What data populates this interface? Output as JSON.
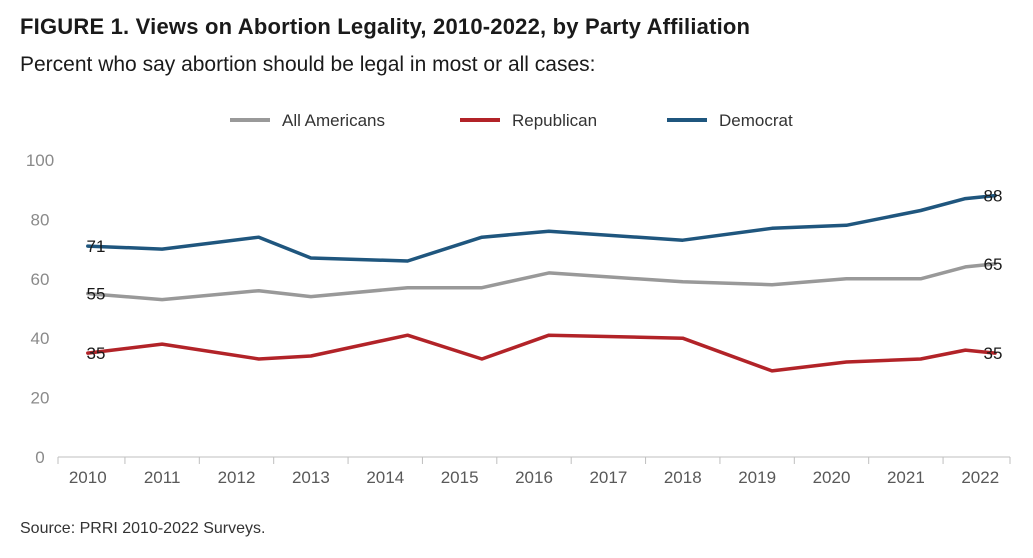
{
  "title": "FIGURE 1.  Views on Abortion Legality, 2010-2022, by Party Affiliation",
  "subtitle": "Percent who say abortion should be legal in most or all cases:",
  "source": "Source: PRRI 2010-2022 Surveys.",
  "chart_data": {
    "type": "line",
    "x": [
      2010,
      2011,
      2012,
      2013,
      2014,
      2015,
      2016,
      2017,
      2018,
      2019,
      2020,
      2021,
      2022
    ],
    "x_tick_labels": [
      "2010",
      "2011",
      "2012",
      "2013",
      "2014",
      "2015",
      "2016",
      "2017",
      "2018",
      "2019",
      "2020",
      "2021",
      "2022"
    ],
    "series_x": [
      2010,
      2011,
      2012.3,
      2013,
      2014.3,
      2015.3,
      2016.2,
      2018,
      2019.2,
      2020.2,
      2021.2,
      2021.8,
      2022.2
    ],
    "series": [
      {
        "name": "All Americans",
        "color": "#999999",
        "values": [
          55,
          53,
          56,
          54,
          57,
          57,
          62,
          59,
          58,
          60,
          60,
          64,
          65
        ],
        "labels": {
          "start": "55",
          "end": "65"
        }
      },
      {
        "name": "Republican",
        "color": "#b22328",
        "values": [
          35,
          38,
          33,
          34,
          41,
          33,
          41,
          40,
          29,
          32,
          33,
          36,
          35
        ],
        "labels": {
          "start": "35",
          "end": "35"
        }
      },
      {
        "name": "Democrat",
        "color": "#1f567e",
        "values": [
          71,
          70,
          74,
          67,
          66,
          74,
          76,
          73,
          77,
          78,
          83,
          87,
          88
        ],
        "labels": {
          "start": "71",
          "end": "88"
        }
      }
    ],
    "y_ticks": [
      0,
      20,
      40,
      60,
      80,
      100
    ],
    "ylim": [
      0,
      100
    ],
    "xlim": [
      2009.6,
      2022.4
    ],
    "legend_position": "top-center",
    "grid": false
  }
}
